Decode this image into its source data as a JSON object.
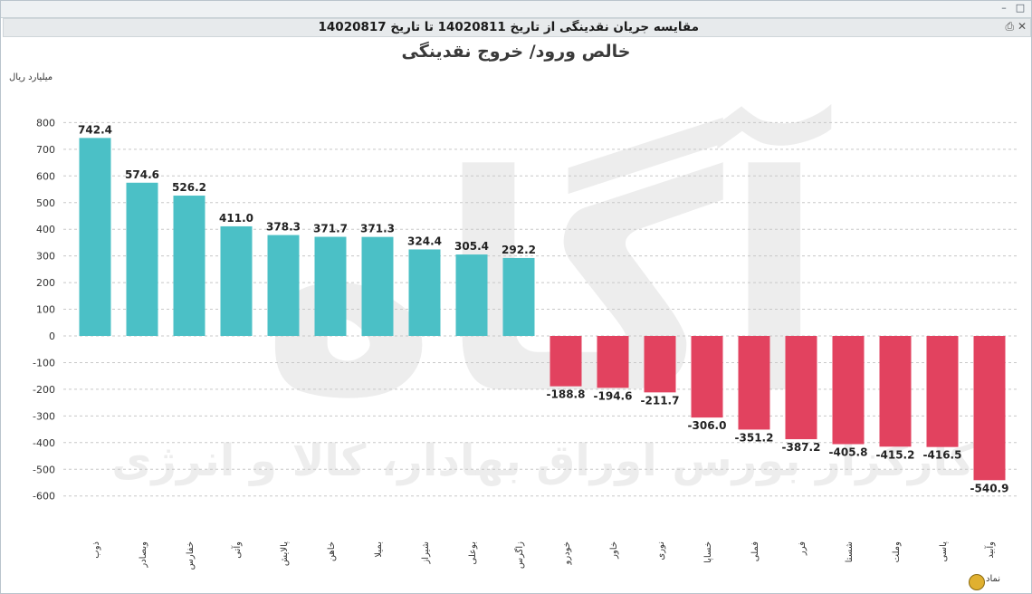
{
  "window": {
    "title": "مقایسه جریان نقدینگی از تاریخ 14020811 تا تاریخ 14020817",
    "maximize_glyph": "□",
    "minimize_glyph": "–"
  },
  "watermark": {
    "logo_text": "آگاه",
    "tagline": "کارگزار بورس اوراق بهادار، کالا و انرژی",
    "color": "#ededed"
  },
  "colors": {
    "positive": "#4bc0c6",
    "negative": "#e2425f",
    "grid": "#c8c8c8"
  },
  "chart_data": {
    "type": "bar",
    "title": "خالص ورود/ خروج نقدینگی",
    "ylabel": "میلیارد ریال",
    "xlabel": "نماد",
    "ylim": [
      -700,
      900
    ],
    "yticks": [
      800,
      700,
      600,
      500,
      400,
      300,
      200,
      100,
      0,
      -100,
      -200,
      -300,
      -400,
      -500,
      -600
    ],
    "grid": true,
    "categories": [
      "ذوب",
      "وبصادر",
      "خفارس",
      "وآتی",
      "پالایش",
      "خاهن",
      "بمیلا",
      "شیراز",
      "بوعلی",
      "زاگرس",
      "خودرو",
      "خاور",
      "نوری",
      "خساپا",
      "فملی",
      "فرر",
      "شستا",
      "وملت",
      "پاسی",
      "وآبید"
    ],
    "values": [
      742.4,
      574.6,
      526.2,
      411.0,
      378.3,
      371.7,
      371.3,
      324.4,
      305.4,
      292.2,
      -188.8,
      -194.6,
      -211.7,
      -306.0,
      -351.2,
      -387.2,
      -405.8,
      -415.2,
      -416.5,
      -540.9
    ],
    "data_labels": [
      "742.4",
      "574.6",
      "526.2",
      "411.0",
      "378.3",
      "371.7",
      "371.3",
      "324.4",
      "305.4",
      "292.2",
      "-188.8",
      "-194.6",
      "-211.7",
      "-306.0",
      "-351.2",
      "-387.2",
      "-405.8",
      "-415.2",
      "-416.5",
      "-540.9"
    ]
  }
}
